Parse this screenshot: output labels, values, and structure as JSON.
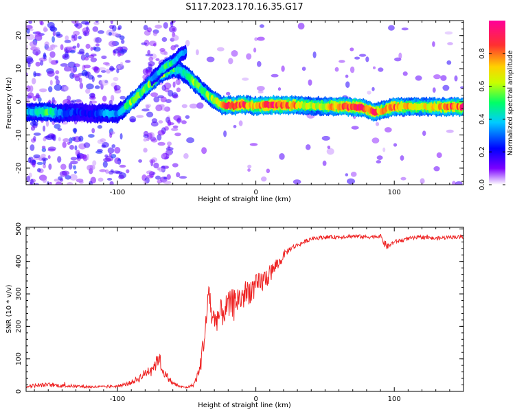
{
  "title": "S117.2023.170.16.35.G17",
  "chart_data": [
    {
      "type": "heatmap",
      "title": "S117.2023.170.16.35.G17",
      "xlabel": "Height of straight line (km)",
      "ylabel": "Frequency (Hz)",
      "xlim": [
        -166,
        150
      ],
      "ylim": [
        -25,
        24.5
      ],
      "x_ticks": [
        -100,
        0,
        100
      ],
      "x_tick_labels": [
        "-100",
        "0",
        "100"
      ],
      "y_ticks": [
        -20,
        -10,
        0,
        10,
        20
      ],
      "y_tick_labels": [
        "-20",
        "-10",
        "0",
        "10",
        "20"
      ],
      "colorbar": {
        "label": "Normalized spectral amplitude",
        "range": [
          0,
          1
        ],
        "ticks": [
          0.0,
          0.2,
          0.4,
          0.6,
          0.8
        ],
        "tick_labels": [
          "0.0",
          "0.2",
          "0.4",
          "0.6",
          "0.8"
        ],
        "colors": [
          "#ffffff",
          "#7b00ff",
          "#0000ff",
          "#00ccff",
          "#00ff66",
          "#c8ff00",
          "#ffd000",
          "#ff3030",
          "#ff0099"
        ]
      },
      "ridge": {
        "name": "main ridge",
        "x": [
          -166,
          -150,
          -140,
          -130,
          -120,
          -110,
          -100,
          -95,
          -90,
          -85,
          -80,
          -75,
          -70,
          -65,
          -60,
          -55,
          -50,
          -45,
          -40,
          -35,
          -30,
          -25,
          -20,
          -15,
          -10,
          -5,
          0,
          10,
          20,
          30,
          40,
          50,
          60,
          70,
          75,
          80,
          85,
          90,
          95,
          100,
          110,
          120,
          130,
          140,
          150
        ],
        "y": [
          -3,
          -3,
          -3.5,
          -3,
          -3.5,
          -3.5,
          -3.5,
          -2,
          0,
          2,
          4,
          6,
          8,
          9,
          10,
          9.5,
          8,
          6,
          4,
          2,
          0.5,
          -1,
          -1,
          -1.2,
          -0.8,
          -1,
          -1.3,
          -0.9,
          -1,
          -1,
          -1.2,
          -1.3,
          -1.4,
          -1.5,
          -1.7,
          -2.2,
          -3,
          -2.8,
          -2,
          -1.5,
          -1.5,
          -1.5,
          -1.5,
          -1.5,
          -1.5
        ],
        "amplitude": [
          0.35,
          0.5,
          0.3,
          0.25,
          0.2,
          0.35,
          0.3,
          0.45,
          0.6,
          0.55,
          0.5,
          0.65,
          0.6,
          0.55,
          0.5,
          0.45,
          0.5,
          0.6,
          0.5,
          0.55,
          0.6,
          0.65,
          0.85,
          0.8,
          0.9,
          0.7,
          0.75,
          0.9,
          0.85,
          0.7,
          0.6,
          0.65,
          0.8,
          0.85,
          0.9,
          0.8,
          0.85,
          0.7,
          0.75,
          0.8,
          0.7,
          0.65,
          0.7,
          0.8,
          0.85
        ]
      },
      "branch": {
        "name": "upper branch",
        "x": [
          -75,
          -70,
          -65,
          -60,
          -55,
          -50
        ],
        "y": [
          7,
          9,
          11,
          12,
          14,
          15.5
        ],
        "amplitude": [
          0.3,
          0.4,
          0.5,
          0.45,
          0.35,
          0.3
        ]
      }
    },
    {
      "type": "line",
      "xlabel": "Height of straight line (km)",
      "ylabel": "SNR (10 * v/v)",
      "xlim": [
        -166,
        150
      ],
      "ylim": [
        0,
        505
      ],
      "x_ticks": [
        -100,
        0,
        100
      ],
      "x_tick_labels": [
        "-100",
        "0",
        "100"
      ],
      "y_ticks": [
        0,
        100,
        200,
        300,
        400,
        500
      ],
      "y_tick_labels": [
        "0",
        "100",
        "200",
        "300",
        "400",
        "500"
      ],
      "color": "#ee2222",
      "series": [
        {
          "x": [
            -166,
            -160,
            -150,
            -140,
            -130,
            -120,
            -110,
            -100,
            -95,
            -90,
            -85,
            -80,
            -75,
            -72,
            -70,
            -68,
            -65,
            -60,
            -55,
            -50,
            -45,
            -42,
            -40,
            -38,
            -36,
            -34,
            -32,
            -30,
            -25,
            -20,
            -15,
            -10,
            -5,
            0,
            5,
            10,
            15,
            18,
            20,
            25,
            30,
            35,
            40,
            50,
            60,
            70,
            80,
            90,
            93,
            95,
            100,
            110,
            120,
            130,
            140,
            150
          ],
          "y": [
            15,
            18,
            20,
            18,
            16,
            14,
            14,
            16,
            20,
            28,
            38,
            55,
            75,
            85,
            110,
            70,
            50,
            25,
            15,
            12,
            20,
            50,
            80,
            150,
            200,
            330,
            230,
            220,
            240,
            260,
            280,
            290,
            310,
            320,
            340,
            360,
            390,
            400,
            420,
            440,
            450,
            460,
            470,
            475,
            475,
            478,
            475,
            478,
            455,
            445,
            460,
            470,
            475,
            470,
            475,
            475
          ],
          "spread": [
            10,
            12,
            14,
            12,
            10,
            8,
            8,
            8,
            10,
            14,
            22,
            30,
            40,
            45,
            50,
            35,
            25,
            15,
            8,
            6,
            10,
            30,
            50,
            80,
            90,
            90,
            80,
            80,
            90,
            90,
            90,
            90,
            85,
            80,
            70,
            60,
            40,
            30,
            22,
            18,
            14,
            12,
            12,
            12,
            12,
            12,
            12,
            12,
            25,
            20,
            12,
            12,
            12,
            12,
            12,
            12
          ]
        }
      ]
    }
  ]
}
